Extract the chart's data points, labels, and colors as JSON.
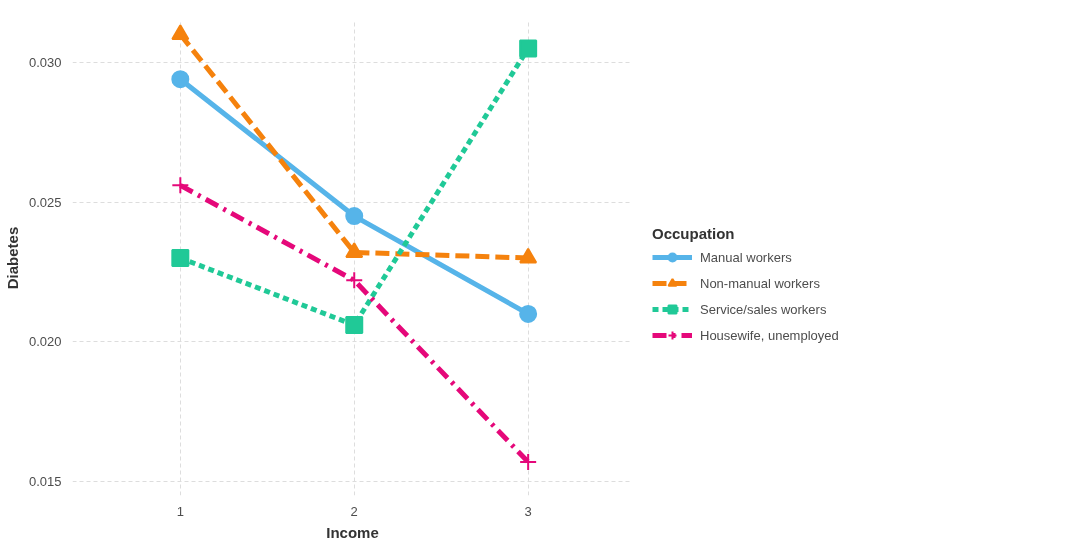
{
  "chart_data": {
    "type": "line",
    "xlabel": "Income",
    "ylabel": "Diabetes",
    "legend_title": "Occupation",
    "x": [
      1,
      2,
      3
    ],
    "xlim": [
      0.38,
      3.6
    ],
    "xticks": [
      1,
      2,
      3
    ],
    "ylim": [
      0.0145,
      0.0315
    ],
    "yticks": [
      {
        "value": 0.015,
        "label": "0.015"
      },
      {
        "value": 0.02,
        "label": "0.020"
      },
      {
        "value": 0.025,
        "label": "0.025"
      },
      {
        "value": 0.03,
        "label": "0.030"
      }
    ],
    "grid": true,
    "legend": "right",
    "series": [
      {
        "name": "Manual workers",
        "color": "#56b4e9",
        "marker": "circle",
        "line_style": "solid",
        "values": [
          0.0294,
          0.0245,
          0.021
        ]
      },
      {
        "name": "Non-manual workers",
        "color": "#f5820d",
        "marker": "triangle",
        "line_style": "dashed",
        "values": [
          0.031,
          0.0232,
          0.023
        ]
      },
      {
        "name": "Service/sales workers",
        "color": "#20c997",
        "marker": "square",
        "line_style": "dotted",
        "values": [
          0.023,
          0.0206,
          0.0305
        ]
      },
      {
        "name": "Housewife, unemployed",
        "color": "#e5087a",
        "marker": "cross",
        "line_style": "dashdot",
        "values": [
          0.0256,
          0.0222,
          0.0157
        ]
      }
    ]
  }
}
